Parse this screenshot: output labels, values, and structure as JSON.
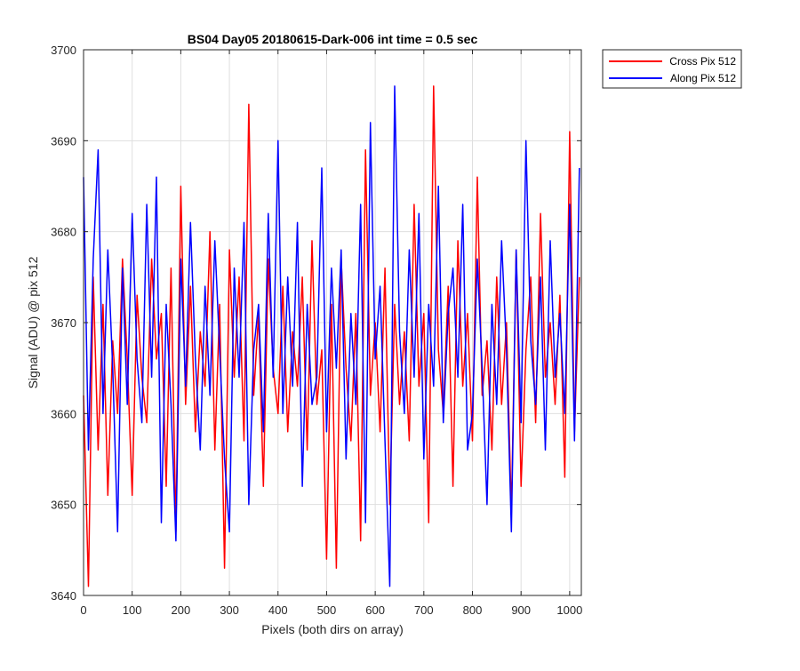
{
  "chart_data": {
    "type": "line",
    "title": "BS04 Day05 20180615-Dark-006 int time = 0.5 sec",
    "xlabel": "Pixels (both dirs on array)",
    "ylabel": "Signal (ADU) @ pix 512",
    "xlim": [
      0,
      1024
    ],
    "ylim": [
      3640,
      3700
    ],
    "xticks": [
      0,
      100,
      200,
      300,
      400,
      500,
      600,
      700,
      800,
      900,
      1000
    ],
    "yticks": [
      3640,
      3650,
      3660,
      3670,
      3680,
      3690,
      3700
    ],
    "grid": true,
    "legend_position": "outside-top-right",
    "colors": {
      "cross": "#ff0000",
      "along": "#0000ff"
    },
    "series": [
      {
        "name": "Cross Pix 512",
        "color": "#ff0000",
        "x": [
          0,
          10,
          20,
          30,
          40,
          50,
          60,
          70,
          80,
          90,
          100,
          110,
          120,
          130,
          140,
          150,
          160,
          170,
          180,
          190,
          200,
          210,
          220,
          230,
          240,
          250,
          260,
          270,
          280,
          290,
          300,
          310,
          320,
          330,
          340,
          350,
          360,
          370,
          380,
          390,
          400,
          410,
          420,
          430,
          440,
          450,
          460,
          470,
          480,
          490,
          500,
          510,
          520,
          530,
          540,
          550,
          560,
          570,
          580,
          590,
          600,
          610,
          620,
          630,
          640,
          650,
          660,
          670,
          680,
          690,
          700,
          710,
          720,
          730,
          740,
          750,
          760,
          770,
          780,
          790,
          800,
          810,
          820,
          830,
          840,
          850,
          860,
          870,
          880,
          890,
          900,
          910,
          920,
          930,
          940,
          950,
          960,
          970,
          980,
          990,
          1000,
          1010,
          1020
        ],
        "y": [
          3662,
          3641,
          3675,
          3656,
          3672,
          3651,
          3668,
          3660,
          3677,
          3666,
          3651,
          3673,
          3664,
          3659,
          3677,
          3666,
          3671,
          3652,
          3676,
          3647,
          3685,
          3661,
          3674,
          3658,
          3669,
          3663,
          3680,
          3656,
          3672,
          3643,
          3678,
          3664,
          3675,
          3657,
          3694,
          3662,
          3671,
          3652,
          3677,
          3665,
          3660,
          3674,
          3658,
          3669,
          3663,
          3675,
          3656,
          3679,
          3661,
          3667,
          3644,
          3672,
          3643,
          3677,
          3665,
          3657,
          3671,
          3646,
          3689,
          3662,
          3670,
          3658,
          3676,
          3650,
          3672,
          3661,
          3669,
          3657,
          3683,
          3663,
          3671,
          3648,
          3696,
          3667,
          3660,
          3674,
          3652,
          3679,
          3663,
          3671,
          3657,
          3686,
          3662,
          3668,
          3656,
          3675,
          3661,
          3670,
          3649,
          3678,
          3652,
          3667,
          3675,
          3659,
          3682,
          3664,
          3670,
          3661,
          3673,
          3653,
          3691,
          3658,
          3675
        ]
      },
      {
        "name": "Along Pix 512",
        "color": "#0000ff",
        "x": [
          0,
          10,
          20,
          30,
          40,
          50,
          60,
          70,
          80,
          90,
          100,
          110,
          120,
          130,
          140,
          150,
          160,
          170,
          180,
          190,
          200,
          210,
          220,
          230,
          240,
          250,
          260,
          270,
          280,
          290,
          300,
          310,
          320,
          330,
          340,
          350,
          360,
          370,
          380,
          390,
          400,
          410,
          420,
          430,
          440,
          450,
          460,
          470,
          480,
          490,
          500,
          510,
          520,
          530,
          540,
          550,
          560,
          570,
          580,
          590,
          600,
          610,
          620,
          630,
          640,
          650,
          660,
          670,
          680,
          690,
          700,
          710,
          720,
          730,
          740,
          750,
          760,
          770,
          780,
          790,
          800,
          810,
          820,
          830,
          840,
          850,
          860,
          870,
          880,
          890,
          900,
          910,
          920,
          930,
          940,
          950,
          960,
          970,
          980,
          990,
          1000,
          1010,
          1020
        ],
        "y": [
          3686,
          3656,
          3677,
          3689,
          3660,
          3678,
          3665,
          3647,
          3676,
          3661,
          3682,
          3666,
          3659,
          3683,
          3664,
          3686,
          3648,
          3672,
          3661,
          3646,
          3677,
          3663,
          3681,
          3666,
          3656,
          3674,
          3662,
          3679,
          3667,
          3655,
          3647,
          3676,
          3664,
          3681,
          3650,
          3667,
          3672,
          3658,
          3682,
          3664,
          3690,
          3660,
          3675,
          3663,
          3681,
          3652,
          3672,
          3661,
          3664,
          3687,
          3658,
          3676,
          3665,
          3678,
          3655,
          3671,
          3661,
          3683,
          3648,
          3692,
          3666,
          3674,
          3657,
          3641,
          3696,
          3669,
          3660,
          3678,
          3664,
          3682,
          3655,
          3672,
          3663,
          3685,
          3659,
          3671,
          3676,
          3664,
          3683,
          3656,
          3660,
          3677,
          3665,
          3650,
          3672,
          3661,
          3679,
          3667,
          3647,
          3678,
          3659,
          3690,
          3668,
          3661,
          3675,
          3656,
          3679,
          3664,
          3671,
          3660,
          3683,
          3657,
          3687
        ]
      }
    ]
  }
}
